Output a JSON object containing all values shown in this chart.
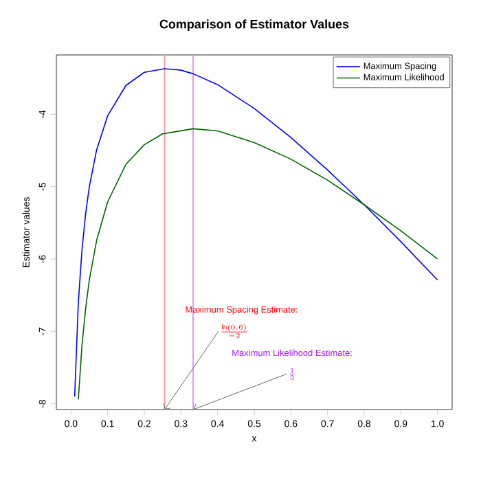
{
  "chart_data": {
    "type": "line",
    "title": "Comparison of Estimator Values",
    "xlabel": "x",
    "ylabel": "Estimator values",
    "xlim": [
      -0.04,
      1.04
    ],
    "ylim": [
      -8.08,
      -3.18
    ],
    "xticks": [
      {
        "value": 0,
        "label": "0.0"
      },
      {
        "value": 0.1,
        "label": "0.1"
      },
      {
        "value": 0.2,
        "label": "0.2"
      },
      {
        "value": 0.3,
        "label": "0.3"
      },
      {
        "value": 0.4,
        "label": "0.4"
      },
      {
        "value": 0.5,
        "label": "0.5"
      },
      {
        "value": 0.6,
        "label": "0.6"
      },
      {
        "value": 0.7,
        "label": "0.7"
      },
      {
        "value": 0.8,
        "label": "0.8"
      },
      {
        "value": 0.9,
        "label": "0.9"
      },
      {
        "value": 1,
        "label": "1.0"
      }
    ],
    "yticks": [
      -8,
      -7,
      -6,
      -5,
      -4
    ],
    "legend": "top right",
    "grid": false,
    "marker": "none",
    "line_style": "solid",
    "series": [
      {
        "name": "Maximum Spacing",
        "color": "#0000ff",
        "x": [
          0.01,
          0.02,
          0.03,
          0.04,
          0.05,
          0.07,
          0.1,
          0.15,
          0.2,
          0.2554,
          0.3,
          0.3333,
          0.4,
          0.5,
          0.6,
          0.7,
          0.8,
          0.9,
          1.0
        ],
        "values": [
          -7.9,
          -6.6,
          -5.87,
          -5.37,
          -5.0,
          -4.49,
          -4.02,
          -3.6,
          -3.42,
          -3.37,
          -3.39,
          -3.44,
          -3.59,
          -3.92,
          -4.32,
          -4.77,
          -5.25,
          -5.76,
          -6.29
        ]
      },
      {
        "name": "Maximum Likelihood",
        "color": "#006400",
        "x": [
          0.02,
          0.03,
          0.04,
          0.05,
          0.07,
          0.1,
          0.15,
          0.2,
          0.25,
          0.3333,
          0.4,
          0.5,
          0.6,
          0.7,
          0.8,
          0.9,
          1.0
        ],
        "values": [
          -7.94,
          -7.19,
          -6.68,
          -6.29,
          -5.74,
          -5.21,
          -4.69,
          -4.42,
          -4.27,
          -4.2,
          -4.23,
          -4.39,
          -4.62,
          -4.91,
          -5.25,
          -5.61,
          -6.0
        ]
      }
    ],
    "ref_lines": [
      {
        "axis": "x",
        "value": 0.2554,
        "label": "\\frac{\\ln(0.6)}{-2}",
        "color": "#ff9999"
      },
      {
        "axis": "x",
        "value": 0.3333,
        "label": "\\frac{1}{3}",
        "color": "#d49bf8"
      }
    ],
    "annotations": [
      "Maximum Spacing Estimate:",
      "Maximum Likelihood Estimate:"
    ]
  }
}
